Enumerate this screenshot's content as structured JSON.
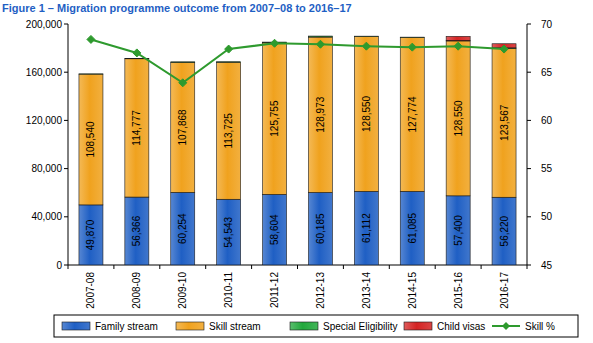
{
  "chart_data": {
    "type": "bar",
    "title": "Figure 1 – Migration programme outcome from 2007–08 to 2016–17",
    "stacked": true,
    "grid": false,
    "legend": "bottom",
    "categories": [
      "2007-08",
      "2008-09",
      "2009-10",
      "2010-11",
      "2011-12",
      "2012-13",
      "2013-14",
      "2014-15",
      "2015-16",
      "2016-17"
    ],
    "series": [
      {
        "name": "Family stream",
        "color": "#1f5fc4",
        "data_labels": true,
        "values": [
          49870,
          56366,
          60254,
          54543,
          58604,
          60185,
          61112,
          61085,
          57400,
          56220
        ],
        "value_labels": [
          "49,870",
          "56,366",
          "60,254",
          "54,543",
          "58,604",
          "60,185",
          "61,112",
          "61,085",
          "57,400",
          "56,220"
        ]
      },
      {
        "name": "Skill stream",
        "color": "#f0a21e",
        "data_labels": true,
        "values": [
          108540,
          114777,
          107868,
          113725,
          125755,
          128973,
          128550,
          127774,
          128550,
          123567
        ],
        "value_labels": [
          "108,540",
          "114,777",
          "107,868",
          "113,725",
          "125,755",
          "128,973",
          "128,550",
          "127,774",
          "128,550",
          "123,567"
        ]
      },
      {
        "name": "Special Eligibility",
        "color": "#22a83c",
        "data_labels": false,
        "values": [
          200,
          175,
          501,
          417,
          639,
          842,
          245,
          238,
          308,
          421
        ]
      },
      {
        "name": "Child visas",
        "color": "#d42424",
        "data_labels": false,
        "values": [
          0,
          0,
          0,
          0,
          0,
          0,
          0,
          0,
          3500,
          3400
        ]
      },
      {
        "name": "Skill %",
        "type": "line",
        "axis": "y2",
        "color": "#2e9a2e",
        "marker": "diamond",
        "line_style": "solid",
        "values": [
          68.4,
          67.0,
          63.9,
          67.4,
          68.0,
          67.9,
          67.7,
          67.6,
          67.7,
          67.4
        ]
      }
    ],
    "ylim": [
      0,
      200000
    ],
    "yticks": [
      0,
      {
        "value": 40000,
        "label": "40,000"
      },
      {
        "value": 80000,
        "label": "80,000"
      },
      {
        "value": 120000,
        "label": "120,000"
      },
      {
        "value": 160000,
        "label": "160,000"
      },
      {
        "value": 200000,
        "label": "200,000"
      }
    ],
    "y2lim": [
      45,
      70
    ],
    "y2ticks": [
      45,
      50,
      55,
      60,
      65,
      70
    ]
  }
}
